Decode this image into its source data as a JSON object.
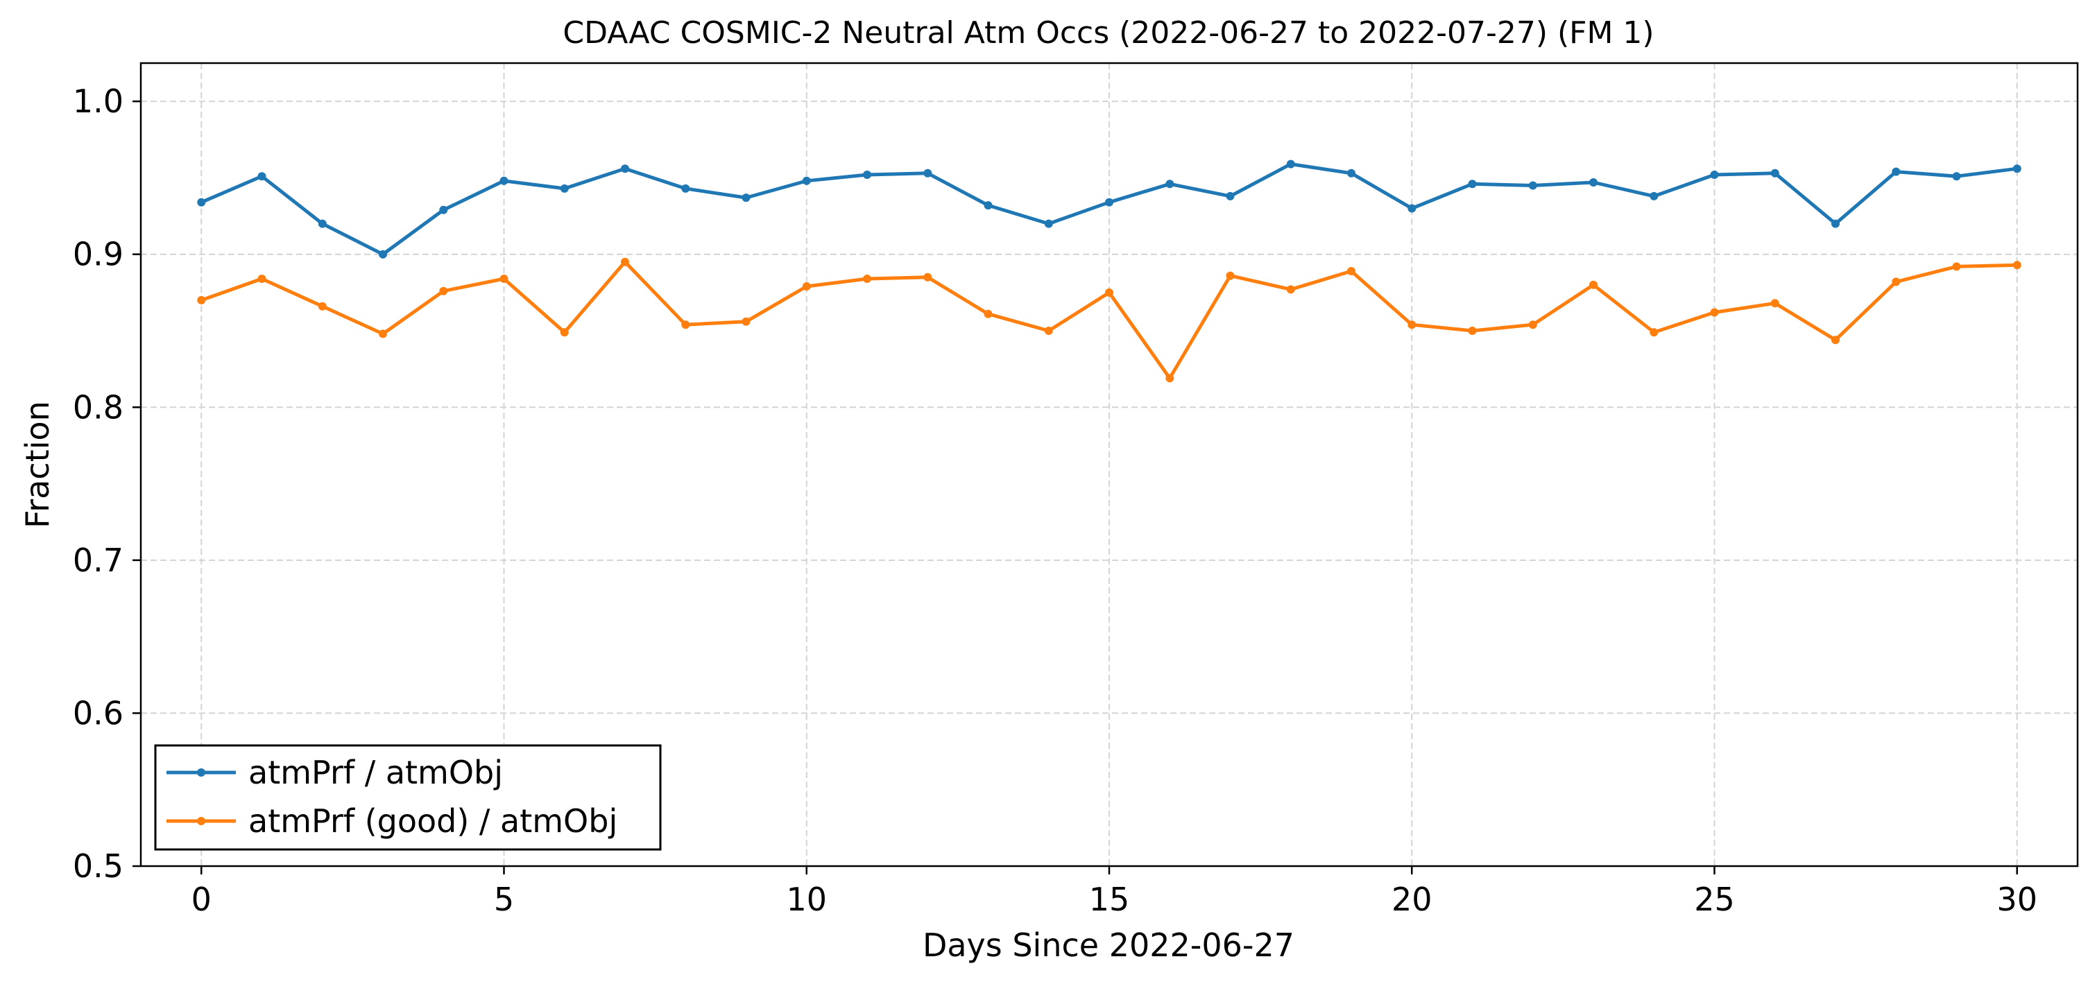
{
  "chart_data": {
    "type": "line",
    "title": "CDAAC COSMIC-2 Neutral Atm Occs (2022-06-27 to 2022-07-27) (FM 1)",
    "xlabel": "Days Since 2022-06-27",
    "ylabel": "Fraction",
    "xlim": [
      -1,
      31
    ],
    "ylim": [
      0.5,
      1.025
    ],
    "xticks": [
      0,
      5,
      10,
      15,
      20,
      25,
      30
    ],
    "xtick_labels": [
      "0",
      "5",
      "10",
      "15",
      "20",
      "25",
      "30"
    ],
    "yticks": [
      0.5,
      0.6,
      0.7,
      0.8,
      0.9,
      1.0
    ],
    "ytick_labels": [
      "0.5",
      "0.6",
      "0.7",
      "0.8",
      "0.9",
      "1.0"
    ],
    "grid": true,
    "legend_position": "lower-left",
    "x": [
      0,
      1,
      2,
      3,
      4,
      5,
      6,
      7,
      8,
      9,
      10,
      11,
      12,
      13,
      14,
      15,
      16,
      17,
      18,
      19,
      20,
      21,
      22,
      23,
      24,
      25,
      26,
      27,
      28,
      29,
      30
    ],
    "series": [
      {
        "name": "atmPrf / atmObj",
        "color": "#1f77b4",
        "values": [
          0.934,
          0.951,
          0.92,
          0.9,
          0.929,
          0.948,
          0.943,
          0.956,
          0.943,
          0.937,
          0.948,
          0.952,
          0.953,
          0.932,
          0.92,
          0.934,
          0.946,
          0.938,
          0.959,
          0.953,
          0.93,
          0.946,
          0.945,
          0.947,
          0.938,
          0.952,
          0.953,
          0.92,
          0.954,
          0.951,
          0.956
        ]
      },
      {
        "name": "atmPrf (good) / atmObj",
        "color": "#ff7f0e",
        "values": [
          0.87,
          0.884,
          0.866,
          0.848,
          0.876,
          0.884,
          0.849,
          0.895,
          0.854,
          0.856,
          0.879,
          0.884,
          0.885,
          0.861,
          0.85,
          0.875,
          0.819,
          0.886,
          0.877,
          0.889,
          0.854,
          0.85,
          0.854,
          0.88,
          0.849,
          0.862,
          0.868,
          0.844,
          0.882,
          0.892,
          0.893
        ]
      }
    ]
  }
}
